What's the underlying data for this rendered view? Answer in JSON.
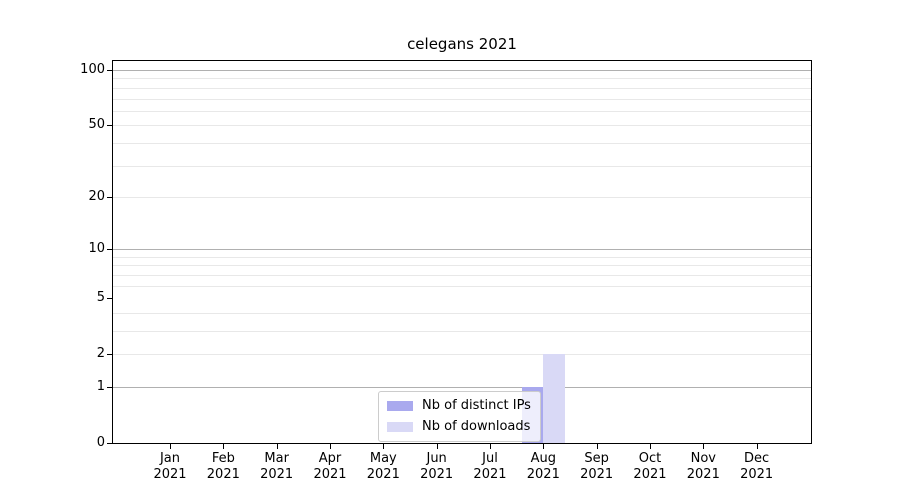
{
  "chart_data": {
    "type": "bar",
    "title": "celegans 2021",
    "categories": [
      "Jan",
      "Feb",
      "Mar",
      "Apr",
      "May",
      "Jun",
      "Jul",
      "Aug",
      "Sep",
      "Oct",
      "Nov",
      "Dec"
    ],
    "category_year": "2021",
    "series": [
      {
        "name": "Nb of distinct IPs",
        "color": "#a9a9ee",
        "values": [
          0,
          0,
          0,
          0,
          0,
          0,
          0,
          1,
          0,
          0,
          0,
          0
        ]
      },
      {
        "name": "Nb of downloads",
        "color": "#d9d9f6",
        "values": [
          0,
          0,
          0,
          0,
          0,
          0,
          0,
          2,
          0,
          0,
          0,
          0
        ]
      }
    ],
    "xlabel": "",
    "ylabel": "",
    "y_scale": "log10(1+value)",
    "ylim": [
      0,
      112
    ],
    "yticks": [
      0,
      1,
      2,
      5,
      10,
      20,
      50,
      100
    ],
    "major_gridlines": [
      1,
      10,
      100
    ],
    "minor_gridlines": [
      2,
      3,
      4,
      6,
      7,
      8,
      9,
      20,
      30,
      40,
      50,
      60,
      70,
      80,
      90
    ],
    "grid": "y",
    "legend_position": "lower center",
    "colors": {
      "major_grid": "#b0b0b0",
      "minor_grid": "#e8e8e8",
      "spine": "#000000",
      "text": "#000000",
      "legend_border": "#cccccc"
    }
  }
}
